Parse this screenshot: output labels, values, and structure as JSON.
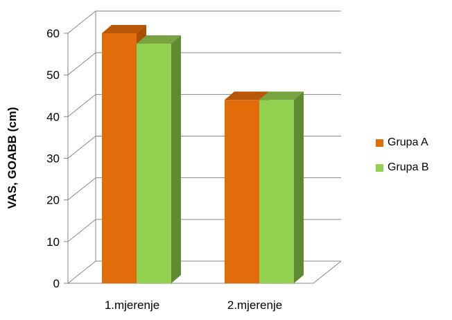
{
  "chart_data": {
    "type": "bar",
    "style": "3d-clustered-column",
    "title": "",
    "xlabel": "",
    "ylabel": "VAS, GOABB (cm)",
    "ylim": [
      0,
      60
    ],
    "yticks": [
      0,
      10,
      20,
      30,
      40,
      50,
      60
    ],
    "grid": true,
    "legend_position": "right",
    "categories": [
      "1.mjerenje",
      "2.mjerenje"
    ],
    "series": [
      {
        "name": "Grupa A",
        "values": [
          60,
          44
        ],
        "color": "#E36C0A",
        "top_color": "#B85707",
        "side_color": "#A94F06"
      },
      {
        "name": "Grupa B",
        "values": [
          57.5,
          44
        ],
        "color": "#92D050",
        "top_color": "#77A441",
        "side_color": "#5F8A32"
      }
    ]
  }
}
